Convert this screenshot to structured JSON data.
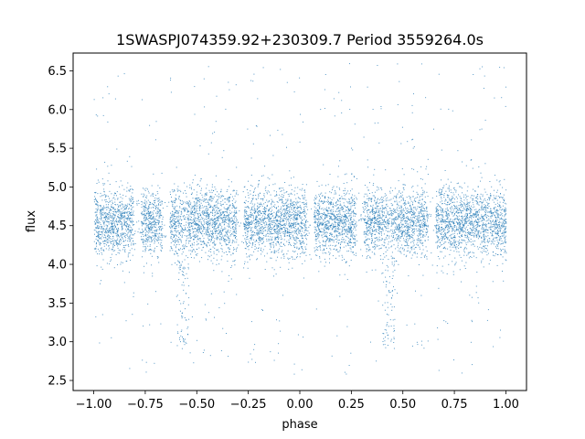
{
  "chart_data": {
    "type": "scatter",
    "title": "1SWASPJ074359.92+230309.7 Period 3559264.0s",
    "xlabel": "phase",
    "ylabel": "flux",
    "xlim": [
      -1.1,
      1.1
    ],
    "ylim": [
      2.37,
      6.73
    ],
    "xticks": [
      -1.0,
      -0.75,
      -0.5,
      -0.25,
      0.0,
      0.25,
      0.5,
      0.75,
      1.0
    ],
    "xtick_labels": [
      "−1.00",
      "−0.75",
      "−0.50",
      "−0.25",
      "0.00",
      "0.25",
      "0.50",
      "0.75",
      "1.00"
    ],
    "yticks": [
      2.5,
      3.0,
      3.5,
      4.0,
      4.5,
      5.0,
      5.5,
      6.0,
      6.5
    ],
    "ytick_labels": [
      "2.5",
      "3.0",
      "3.5",
      "4.0",
      "4.5",
      "5.0",
      "5.5",
      "6.0",
      "6.5"
    ],
    "grid": false,
    "point_color": "#1f77b4",
    "series": [
      {
        "baseline_flux": 4.55,
        "typical_range": [
          4.1,
          5.0
        ],
        "data_gaps_phase": [
          -0.79,
          -0.65,
          -0.29,
          0.05,
          0.29,
          0.64
        ],
        "dip_phases": [
          -0.57,
          0.43
        ],
        "dip_min_flux": 2.9,
        "phase_range": [
          -1.0,
          1.0
        ],
        "y_range": [
          2.58,
          6.6
        ]
      }
    ]
  }
}
